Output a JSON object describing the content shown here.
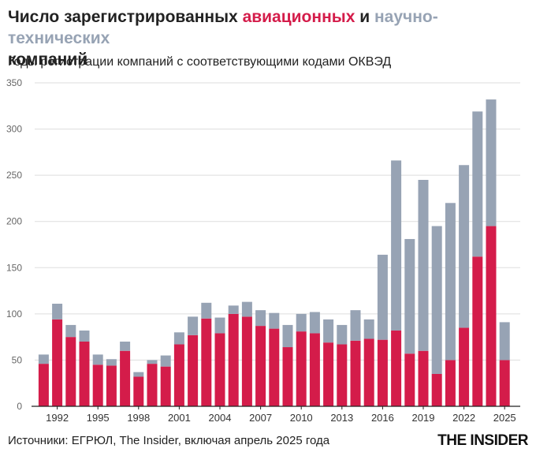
{
  "header": {
    "title_part1": "Число зарегистрированных ",
    "title_aviation": "авиационных",
    "title_and": " и ",
    "title_science": "научно-технических",
    "title_part2": "компаний",
    "subtitle": "Годы регистрации компаний с соответствующими кодами ОКВЭД"
  },
  "footer": {
    "source": "Источники: ЕГРЮЛ, The Insider, включая апрель 2025 года",
    "brand": "THE INSIDER"
  },
  "colors": {
    "aviation": "#d41c4a",
    "science": "#97a3b4",
    "grid": "#dddddd",
    "axis": "#222222"
  },
  "chart_data": {
    "type": "bar",
    "stacked": true,
    "ylim": [
      0,
      350
    ],
    "yticks": [
      0,
      50,
      100,
      150,
      200,
      250,
      300,
      350
    ],
    "x_tick_labels": [
      "1992",
      "1995",
      "1998",
      "2001",
      "2004",
      "2007",
      "2010",
      "2013",
      "2016",
      "2019",
      "2022",
      "2025"
    ],
    "grid": "horizontal",
    "categories": [
      1991,
      1992,
      1993,
      1994,
      1995,
      1996,
      1997,
      1998,
      1999,
      2000,
      2001,
      2002,
      2003,
      2004,
      2005,
      2006,
      2007,
      2008,
      2009,
      2010,
      2011,
      2012,
      2013,
      2014,
      2015,
      2016,
      2017,
      2018,
      2019,
      2020,
      2021,
      2022,
      2023,
      2024,
      2025
    ],
    "series": [
      {
        "name": "авиационных",
        "values": [
          46,
          94,
          75,
          70,
          45,
          44,
          60,
          32,
          46,
          43,
          67,
          77,
          95,
          79,
          100,
          97,
          87,
          84,
          64,
          81,
          79,
          69,
          67,
          71,
          73,
          72,
          82,
          57,
          60,
          35,
          50,
          85,
          162,
          195,
          50
        ]
      },
      {
        "name": "научно-технических",
        "values": [
          10,
          17,
          13,
          12,
          11,
          7,
          10,
          5,
          4,
          12,
          13,
          20,
          17,
          17,
          9,
          16,
          17,
          17,
          24,
          19,
          23,
          25,
          21,
          33,
          21,
          92,
          184,
          124,
          185,
          160,
          170,
          176,
          157,
          137,
          41
        ]
      }
    ]
  }
}
